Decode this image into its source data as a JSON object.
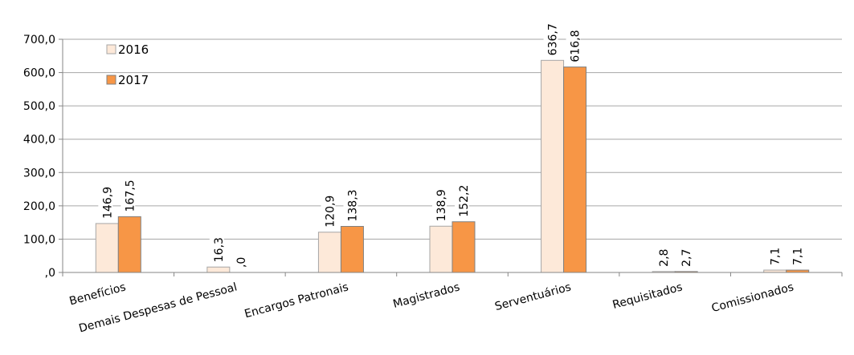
{
  "chart_data": {
    "type": "bar",
    "categories": [
      "Benefícios",
      "Demais Despesas de Pessoal",
      "Encargos Patronais",
      "Magistrados",
      "Serventuários",
      "Requisitados",
      "Comissionados"
    ],
    "series": [
      {
        "name": "2016",
        "values": [
          146.9,
          16.3,
          120.9,
          138.9,
          636.7,
          2.8,
          7.1
        ],
        "labels": [
          "146,9",
          "16,3",
          "120,9",
          "138,9",
          "636,7",
          "2,8",
          "7,1"
        ],
        "color": "#fde9d9",
        "stroke": "#a6a6a6"
      },
      {
        "name": "2017",
        "values": [
          167.5,
          0,
          138.3,
          152.2,
          616.8,
          2.7,
          7.1
        ],
        "labels": [
          "167,5",
          ",0",
          "138,3",
          "152,2",
          "616,8",
          "2,7",
          "7,1"
        ],
        "color": "#f79646",
        "stroke": "#808080"
      }
    ],
    "ylim": [
      0,
      700
    ],
    "yticks": [
      {
        "value": 0,
        "label": ",0"
      },
      {
        "value": 100,
        "label": "100,0"
      },
      {
        "value": 200,
        "label": "200,0"
      },
      {
        "value": 300,
        "label": "300,0"
      },
      {
        "value": 400,
        "label": "400,0"
      },
      {
        "value": 500,
        "label": "500,0"
      },
      {
        "value": 600,
        "label": "600,0"
      },
      {
        "value": 700,
        "label": "700,0"
      }
    ],
    "grid": true,
    "legend": "top-left",
    "title": "",
    "xlabel": "",
    "ylabel": ""
  }
}
